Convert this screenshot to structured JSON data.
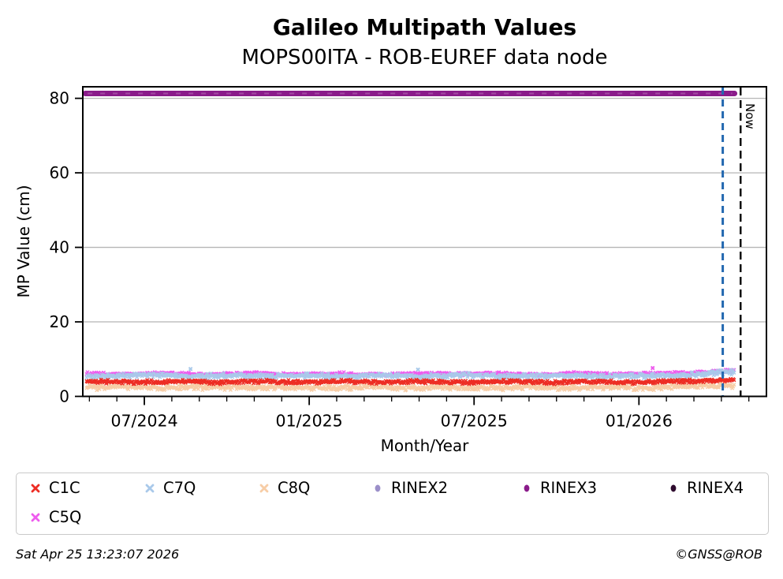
{
  "header": {
    "title": "Galileo Multipath Values",
    "subtitle": "MOPS00ITA - ROB-EUREF data node"
  },
  "footer": {
    "timestamp": "Sat Apr 25 13:23:07 2026",
    "credit": "©GNSS@ROB"
  },
  "chart_data": {
    "type": "scatter",
    "title": "Galileo Multipath Values",
    "subtitle": "MOPS00ITA - ROB-EUREF data node",
    "xlabel": "Month/Year",
    "ylabel": "MP Value (cm)",
    "x_axis": {
      "unit": "months since 2024-07",
      "range": [
        -2.24,
        22.64
      ],
      "major_ticks": [
        {
          "m": 0,
          "label": "07/2024"
        },
        {
          "m": 6,
          "label": "01/2025"
        },
        {
          "m": 12,
          "label": "07/2025"
        },
        {
          "m": 18,
          "label": "01/2026"
        }
      ],
      "minor_tick_months": [
        -2,
        -1,
        1,
        2,
        3,
        4,
        5,
        7,
        8,
        9,
        10,
        11,
        13,
        14,
        15,
        16,
        17,
        19,
        20,
        21,
        22
      ],
      "grid": false
    },
    "y_axis": {
      "range": [
        0,
        83.1
      ],
      "ticks": [
        0,
        20,
        40,
        60,
        80
      ],
      "grid": true,
      "grid_color": "#b5b5b5"
    },
    "series": [
      {
        "name": "C1C",
        "marker": "x",
        "color": "#ed2d24",
        "kind": "band",
        "draw_order": 4,
        "band": {
          "x_start": -2.1,
          "x_end": 21.47,
          "spread": 0.5,
          "monthly_means": [
            3.85,
            3.9,
            3.95,
            3.9,
            3.85,
            3.9,
            3.95,
            3.9,
            3.9,
            3.85,
            3.9,
            3.95,
            3.9,
            3.85,
            3.9,
            3.9,
            3.95,
            3.9,
            3.85,
            3.9,
            3.9,
            3.95,
            4.1,
            4.45,
            4.5
          ]
        }
      },
      {
        "name": "C7Q",
        "marker": "x",
        "color": "#a9c9ea",
        "kind": "band",
        "draw_order": 2,
        "band": {
          "x_start": -2.1,
          "x_end": 21.47,
          "spread": 0.65,
          "monthly_means": [
            5.45,
            5.5,
            5.6,
            5.55,
            5.45,
            5.5,
            5.6,
            5.5,
            5.45,
            5.55,
            5.5,
            5.45,
            5.5,
            5.6,
            5.55,
            5.5,
            5.45,
            5.5,
            5.55,
            5.5,
            5.45,
            5.6,
            5.9,
            6.35,
            6.4
          ]
        }
      },
      {
        "name": "C8Q",
        "marker": "x",
        "color": "#f7cda6",
        "kind": "band",
        "draw_order": 3,
        "band": {
          "x_start": -2.1,
          "x_end": 21.47,
          "spread": 0.7,
          "monthly_means": [
            2.35,
            2.4,
            2.45,
            2.4,
            2.35,
            2.4,
            2.45,
            2.4,
            2.4,
            2.35,
            2.4,
            2.45,
            2.4,
            2.35,
            2.4,
            2.4,
            2.45,
            2.4,
            2.35,
            2.4,
            2.4,
            2.5,
            2.7,
            2.9,
            2.9
          ]
        }
      },
      {
        "name": "RINEX2",
        "marker": "ellipse",
        "color": "#9b8fc9",
        "kind": "legend-only"
      },
      {
        "name": "RINEX3",
        "marker": "ellipse",
        "color": "#8a1b8a",
        "kind": "line",
        "line": {
          "value": 81.3,
          "x_start": -2.15,
          "x_end": 21.48,
          "width": 7
        }
      },
      {
        "name": "RINEX4",
        "marker": "ellipse",
        "color": "#2e0b2e",
        "kind": "legend-only"
      },
      {
        "name": "C5Q",
        "marker": "x",
        "color": "#ee5cee",
        "kind": "band",
        "draw_order": 1,
        "band": {
          "x_start": -2.1,
          "x_end": 21.47,
          "spread": 0.4,
          "monthly_means": [
            5.95,
            6.0,
            6.1,
            6.05,
            5.95,
            6.0,
            6.1,
            6.0,
            5.95,
            6.05,
            6.0,
            5.95,
            6.0,
            6.1,
            6.05,
            6.0,
            5.95,
            6.0,
            6.05,
            6.0,
            5.95,
            6.1,
            6.4,
            6.8,
            6.8
          ]
        }
      }
    ],
    "outliers": [
      {
        "series": "C7Q",
        "m": 1.68,
        "v": 7.35
      },
      {
        "series": "C7Q",
        "m": 9.96,
        "v": 7.2
      },
      {
        "series": "C5Q",
        "m": 18.5,
        "v": 7.6
      }
    ],
    "annotations": {
      "now_line": {
        "m": 21.7,
        "label": "Now",
        "color": "#000000",
        "style": "dashed"
      },
      "latest_line": {
        "m": 21.05,
        "label": "",
        "color": "#2368b0",
        "style": "dashed"
      }
    },
    "legend": {
      "rows": [
        [
          "C1C",
          "C7Q",
          "C8Q",
          "RINEX2",
          "RINEX3",
          "RINEX4"
        ],
        [
          "C5Q"
        ]
      ]
    }
  }
}
